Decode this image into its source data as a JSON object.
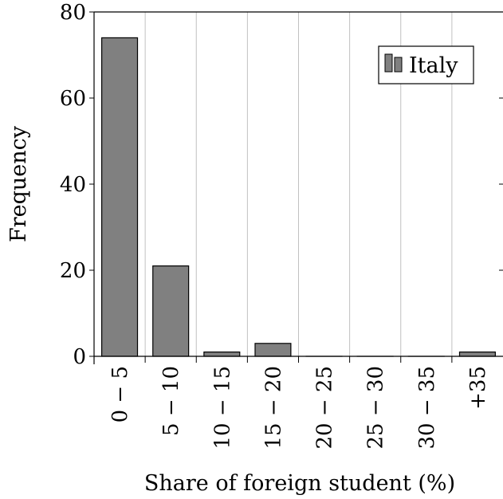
{
  "chart_data": {
    "type": "bar",
    "categories": [
      "0 − 5",
      "5 − 10",
      "10 − 15",
      "15 − 20",
      "20 − 25",
      "25 − 30",
      "30 − 35",
      "+35"
    ],
    "series": [
      {
        "name": "Italy",
        "values": [
          74,
          21,
          1,
          3,
          0,
          0,
          0,
          1
        ]
      }
    ],
    "xlabel": "Share of foreign student (%)",
    "ylabel": "Frequency",
    "ylim": [
      0,
      80
    ],
    "yticks": [
      0,
      20,
      40,
      60,
      80
    ],
    "grid": "vertical",
    "legend_position": "top-right",
    "bar_color": "#808080",
    "bar_stroke": "#000000",
    "grid_color": "#c0c0c0"
  }
}
